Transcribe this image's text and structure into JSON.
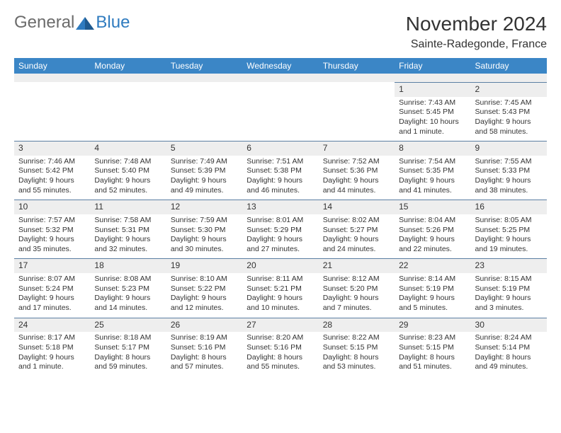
{
  "brand": {
    "word1": "General",
    "word2": "Blue"
  },
  "title": "November 2024",
  "location": "Sainte-Radegonde, France",
  "colors": {
    "header_bg": "#3b86c6",
    "header_text": "#ffffff",
    "daynum_bg": "#eeeeee",
    "daynum_border": "#5b7fa3",
    "body_text": "#333333",
    "brand_gray": "#6b6b6b",
    "brand_blue": "#2f7bbf"
  },
  "day_labels": [
    "Sunday",
    "Monday",
    "Tuesday",
    "Wednesday",
    "Thursday",
    "Friday",
    "Saturday"
  ],
  "weeks": [
    [
      null,
      null,
      null,
      null,
      null,
      {
        "n": "1",
        "sr": "Sunrise: 7:43 AM",
        "ss": "Sunset: 5:45 PM",
        "d1": "Daylight: 10 hours",
        "d2": "and 1 minute."
      },
      {
        "n": "2",
        "sr": "Sunrise: 7:45 AM",
        "ss": "Sunset: 5:43 PM",
        "d1": "Daylight: 9 hours",
        "d2": "and 58 minutes."
      }
    ],
    [
      {
        "n": "3",
        "sr": "Sunrise: 7:46 AM",
        "ss": "Sunset: 5:42 PM",
        "d1": "Daylight: 9 hours",
        "d2": "and 55 minutes."
      },
      {
        "n": "4",
        "sr": "Sunrise: 7:48 AM",
        "ss": "Sunset: 5:40 PM",
        "d1": "Daylight: 9 hours",
        "d2": "and 52 minutes."
      },
      {
        "n": "5",
        "sr": "Sunrise: 7:49 AM",
        "ss": "Sunset: 5:39 PM",
        "d1": "Daylight: 9 hours",
        "d2": "and 49 minutes."
      },
      {
        "n": "6",
        "sr": "Sunrise: 7:51 AM",
        "ss": "Sunset: 5:38 PM",
        "d1": "Daylight: 9 hours",
        "d2": "and 46 minutes."
      },
      {
        "n": "7",
        "sr": "Sunrise: 7:52 AM",
        "ss": "Sunset: 5:36 PM",
        "d1": "Daylight: 9 hours",
        "d2": "and 44 minutes."
      },
      {
        "n": "8",
        "sr": "Sunrise: 7:54 AM",
        "ss": "Sunset: 5:35 PM",
        "d1": "Daylight: 9 hours",
        "d2": "and 41 minutes."
      },
      {
        "n": "9",
        "sr": "Sunrise: 7:55 AM",
        "ss": "Sunset: 5:33 PM",
        "d1": "Daylight: 9 hours",
        "d2": "and 38 minutes."
      }
    ],
    [
      {
        "n": "10",
        "sr": "Sunrise: 7:57 AM",
        "ss": "Sunset: 5:32 PM",
        "d1": "Daylight: 9 hours",
        "d2": "and 35 minutes."
      },
      {
        "n": "11",
        "sr": "Sunrise: 7:58 AM",
        "ss": "Sunset: 5:31 PM",
        "d1": "Daylight: 9 hours",
        "d2": "and 32 minutes."
      },
      {
        "n": "12",
        "sr": "Sunrise: 7:59 AM",
        "ss": "Sunset: 5:30 PM",
        "d1": "Daylight: 9 hours",
        "d2": "and 30 minutes."
      },
      {
        "n": "13",
        "sr": "Sunrise: 8:01 AM",
        "ss": "Sunset: 5:29 PM",
        "d1": "Daylight: 9 hours",
        "d2": "and 27 minutes."
      },
      {
        "n": "14",
        "sr": "Sunrise: 8:02 AM",
        "ss": "Sunset: 5:27 PM",
        "d1": "Daylight: 9 hours",
        "d2": "and 24 minutes."
      },
      {
        "n": "15",
        "sr": "Sunrise: 8:04 AM",
        "ss": "Sunset: 5:26 PM",
        "d1": "Daylight: 9 hours",
        "d2": "and 22 minutes."
      },
      {
        "n": "16",
        "sr": "Sunrise: 8:05 AM",
        "ss": "Sunset: 5:25 PM",
        "d1": "Daylight: 9 hours",
        "d2": "and 19 minutes."
      }
    ],
    [
      {
        "n": "17",
        "sr": "Sunrise: 8:07 AM",
        "ss": "Sunset: 5:24 PM",
        "d1": "Daylight: 9 hours",
        "d2": "and 17 minutes."
      },
      {
        "n": "18",
        "sr": "Sunrise: 8:08 AM",
        "ss": "Sunset: 5:23 PM",
        "d1": "Daylight: 9 hours",
        "d2": "and 14 minutes."
      },
      {
        "n": "19",
        "sr": "Sunrise: 8:10 AM",
        "ss": "Sunset: 5:22 PM",
        "d1": "Daylight: 9 hours",
        "d2": "and 12 minutes."
      },
      {
        "n": "20",
        "sr": "Sunrise: 8:11 AM",
        "ss": "Sunset: 5:21 PM",
        "d1": "Daylight: 9 hours",
        "d2": "and 10 minutes."
      },
      {
        "n": "21",
        "sr": "Sunrise: 8:12 AM",
        "ss": "Sunset: 5:20 PM",
        "d1": "Daylight: 9 hours",
        "d2": "and 7 minutes."
      },
      {
        "n": "22",
        "sr": "Sunrise: 8:14 AM",
        "ss": "Sunset: 5:19 PM",
        "d1": "Daylight: 9 hours",
        "d2": "and 5 minutes."
      },
      {
        "n": "23",
        "sr": "Sunrise: 8:15 AM",
        "ss": "Sunset: 5:19 PM",
        "d1": "Daylight: 9 hours",
        "d2": "and 3 minutes."
      }
    ],
    [
      {
        "n": "24",
        "sr": "Sunrise: 8:17 AM",
        "ss": "Sunset: 5:18 PM",
        "d1": "Daylight: 9 hours",
        "d2": "and 1 minute."
      },
      {
        "n": "25",
        "sr": "Sunrise: 8:18 AM",
        "ss": "Sunset: 5:17 PM",
        "d1": "Daylight: 8 hours",
        "d2": "and 59 minutes."
      },
      {
        "n": "26",
        "sr": "Sunrise: 8:19 AM",
        "ss": "Sunset: 5:16 PM",
        "d1": "Daylight: 8 hours",
        "d2": "and 57 minutes."
      },
      {
        "n": "27",
        "sr": "Sunrise: 8:20 AM",
        "ss": "Sunset: 5:16 PM",
        "d1": "Daylight: 8 hours",
        "d2": "and 55 minutes."
      },
      {
        "n": "28",
        "sr": "Sunrise: 8:22 AM",
        "ss": "Sunset: 5:15 PM",
        "d1": "Daylight: 8 hours",
        "d2": "and 53 minutes."
      },
      {
        "n": "29",
        "sr": "Sunrise: 8:23 AM",
        "ss": "Sunset: 5:15 PM",
        "d1": "Daylight: 8 hours",
        "d2": "and 51 minutes."
      },
      {
        "n": "30",
        "sr": "Sunrise: 8:24 AM",
        "ss": "Sunset: 5:14 PM",
        "d1": "Daylight: 8 hours",
        "d2": "and 49 minutes."
      }
    ]
  ]
}
